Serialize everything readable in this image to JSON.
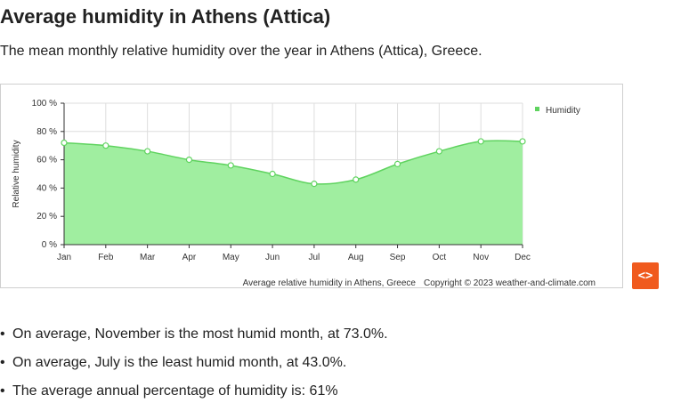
{
  "page": {
    "title": "Average humidity in Athens (Attica)",
    "subtitle": "The mean monthly relative humidity over the year in Athens (Attica), Greece.",
    "embed_label": "<>",
    "facts": [
      "On average, November is the most humid month, at 73.0%.",
      "On average, July is the least humid month, at 43.0%.",
      "The average annual percentage of humidity is: 61%"
    ]
  },
  "chart_data": {
    "type": "area",
    "categories": [
      "Jan",
      "Feb",
      "Mar",
      "Apr",
      "May",
      "Jun",
      "Jul",
      "Aug",
      "Sep",
      "Oct",
      "Nov",
      "Dec"
    ],
    "series": [
      {
        "name": "Humidity",
        "values": [
          72,
          70,
          66,
          60,
          56,
          50,
          43,
          46,
          57,
          66,
          73,
          73
        ]
      }
    ],
    "ylabel": "Relative humidity",
    "ylim": [
      0,
      100
    ],
    "yticks": [
      0,
      20,
      40,
      60,
      80,
      100
    ],
    "ytick_labels": [
      "0 %",
      "20 %",
      "40 %",
      "60 %",
      "80 %",
      "100 %"
    ],
    "grid": true,
    "legend": "top-right",
    "caption": "Average relative humidity in Athens, Greece",
    "copyright": "Copyright © 2023  weather-and-climate.com",
    "colors": {
      "fill": "#a0eea0",
      "line": "#5fd35f",
      "grid": "#dddddd"
    }
  }
}
